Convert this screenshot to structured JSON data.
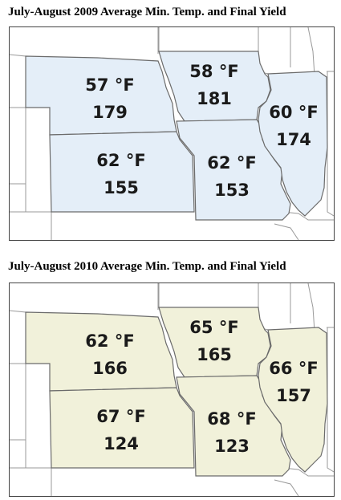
{
  "panels": [
    {
      "title": "July-August 2009 Average Min. Temp. and Final Yield",
      "fill_color": "#e4eef8",
      "states": {
        "nebraska": {
          "temp": "57 °F",
          "yield": "179"
        },
        "kansas": {
          "temp": "62 °F",
          "yield": "155"
        },
        "iowa": {
          "temp": "58 °F",
          "yield": "181"
        },
        "missouri": {
          "temp": "62 °F",
          "yield": "153"
        },
        "illinois": {
          "temp": "60 °F",
          "yield": "174"
        }
      }
    },
    {
      "title": "July-August 2010 Average Min. Temp. and Final Yield",
      "fill_color": "#f1f1da",
      "states": {
        "nebraska": {
          "temp": "62 °F",
          "yield": "166"
        },
        "kansas": {
          "temp": "67 °F",
          "yield": "124"
        },
        "iowa": {
          "temp": "65 °F",
          "yield": "165"
        },
        "missouri": {
          "temp": "68 °F",
          "yield": "123"
        },
        "illinois": {
          "temp": "66 °F",
          "yield": "157"
        }
      }
    }
  ],
  "colors": {
    "border": "#6b6b6b",
    "background_state_border": "#9a9a9a",
    "label_text": "#1a1a1a"
  }
}
